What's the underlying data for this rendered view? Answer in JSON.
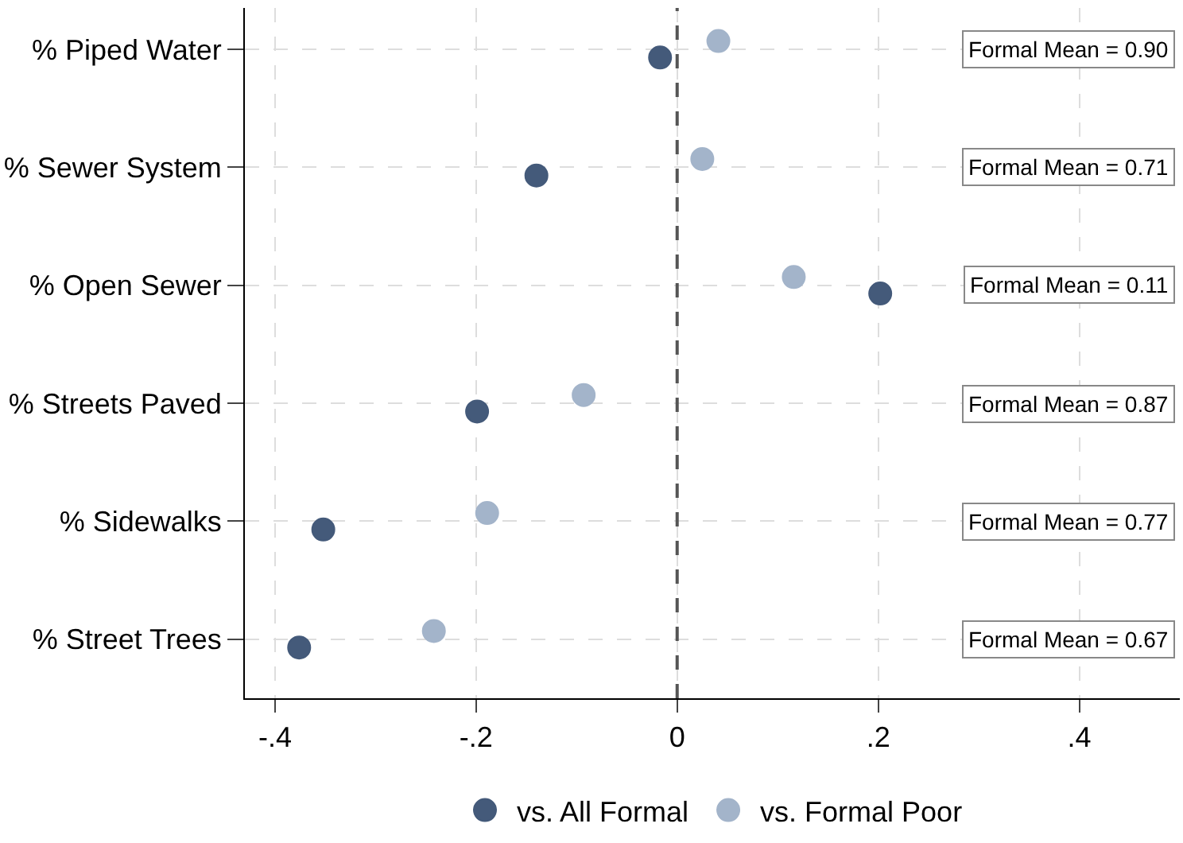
{
  "chart_data": {
    "type": "scatter",
    "orientation": "horizontal",
    "categories": [
      "% Piped Water",
      "% Sewer System",
      "% Open Sewer",
      "% Streets Paved",
      "% Sidewalks",
      "% Street Trees"
    ],
    "series": [
      {
        "name": "vs. All Formal",
        "color": "#445a7a",
        "values": [
          -0.017,
          -0.14,
          0.202,
          -0.199,
          -0.352,
          -0.376
        ]
      },
      {
        "name": "vs. Formal Poor",
        "color": "#a3b4ca",
        "values": [
          0.041,
          0.025,
          0.116,
          -0.093,
          -0.189,
          -0.242
        ]
      }
    ],
    "xlim": [
      -0.43,
      0.5
    ],
    "xticks": [
      {
        "value": -0.4,
        "label": "-.4"
      },
      {
        "value": -0.2,
        "label": "-.2"
      },
      0,
      {
        "value": 0.2,
        "label": ".2"
      },
      {
        "value": 0.4,
        "label": ".4"
      }
    ],
    "annotations": [
      "Formal Mean = 0.90",
      "Formal Mean = 0.71",
      "Formal Mean = 0.11",
      "Formal Mean = 0.87",
      "Formal Mean = 0.77",
      "Formal Mean = 0.67"
    ],
    "ref_lines": [
      {
        "axis": "x",
        "value": 0,
        "color": "#555555",
        "line_style": "dashed"
      }
    ],
    "grid": true,
    "legend": "bottom",
    "marker": "circle"
  }
}
